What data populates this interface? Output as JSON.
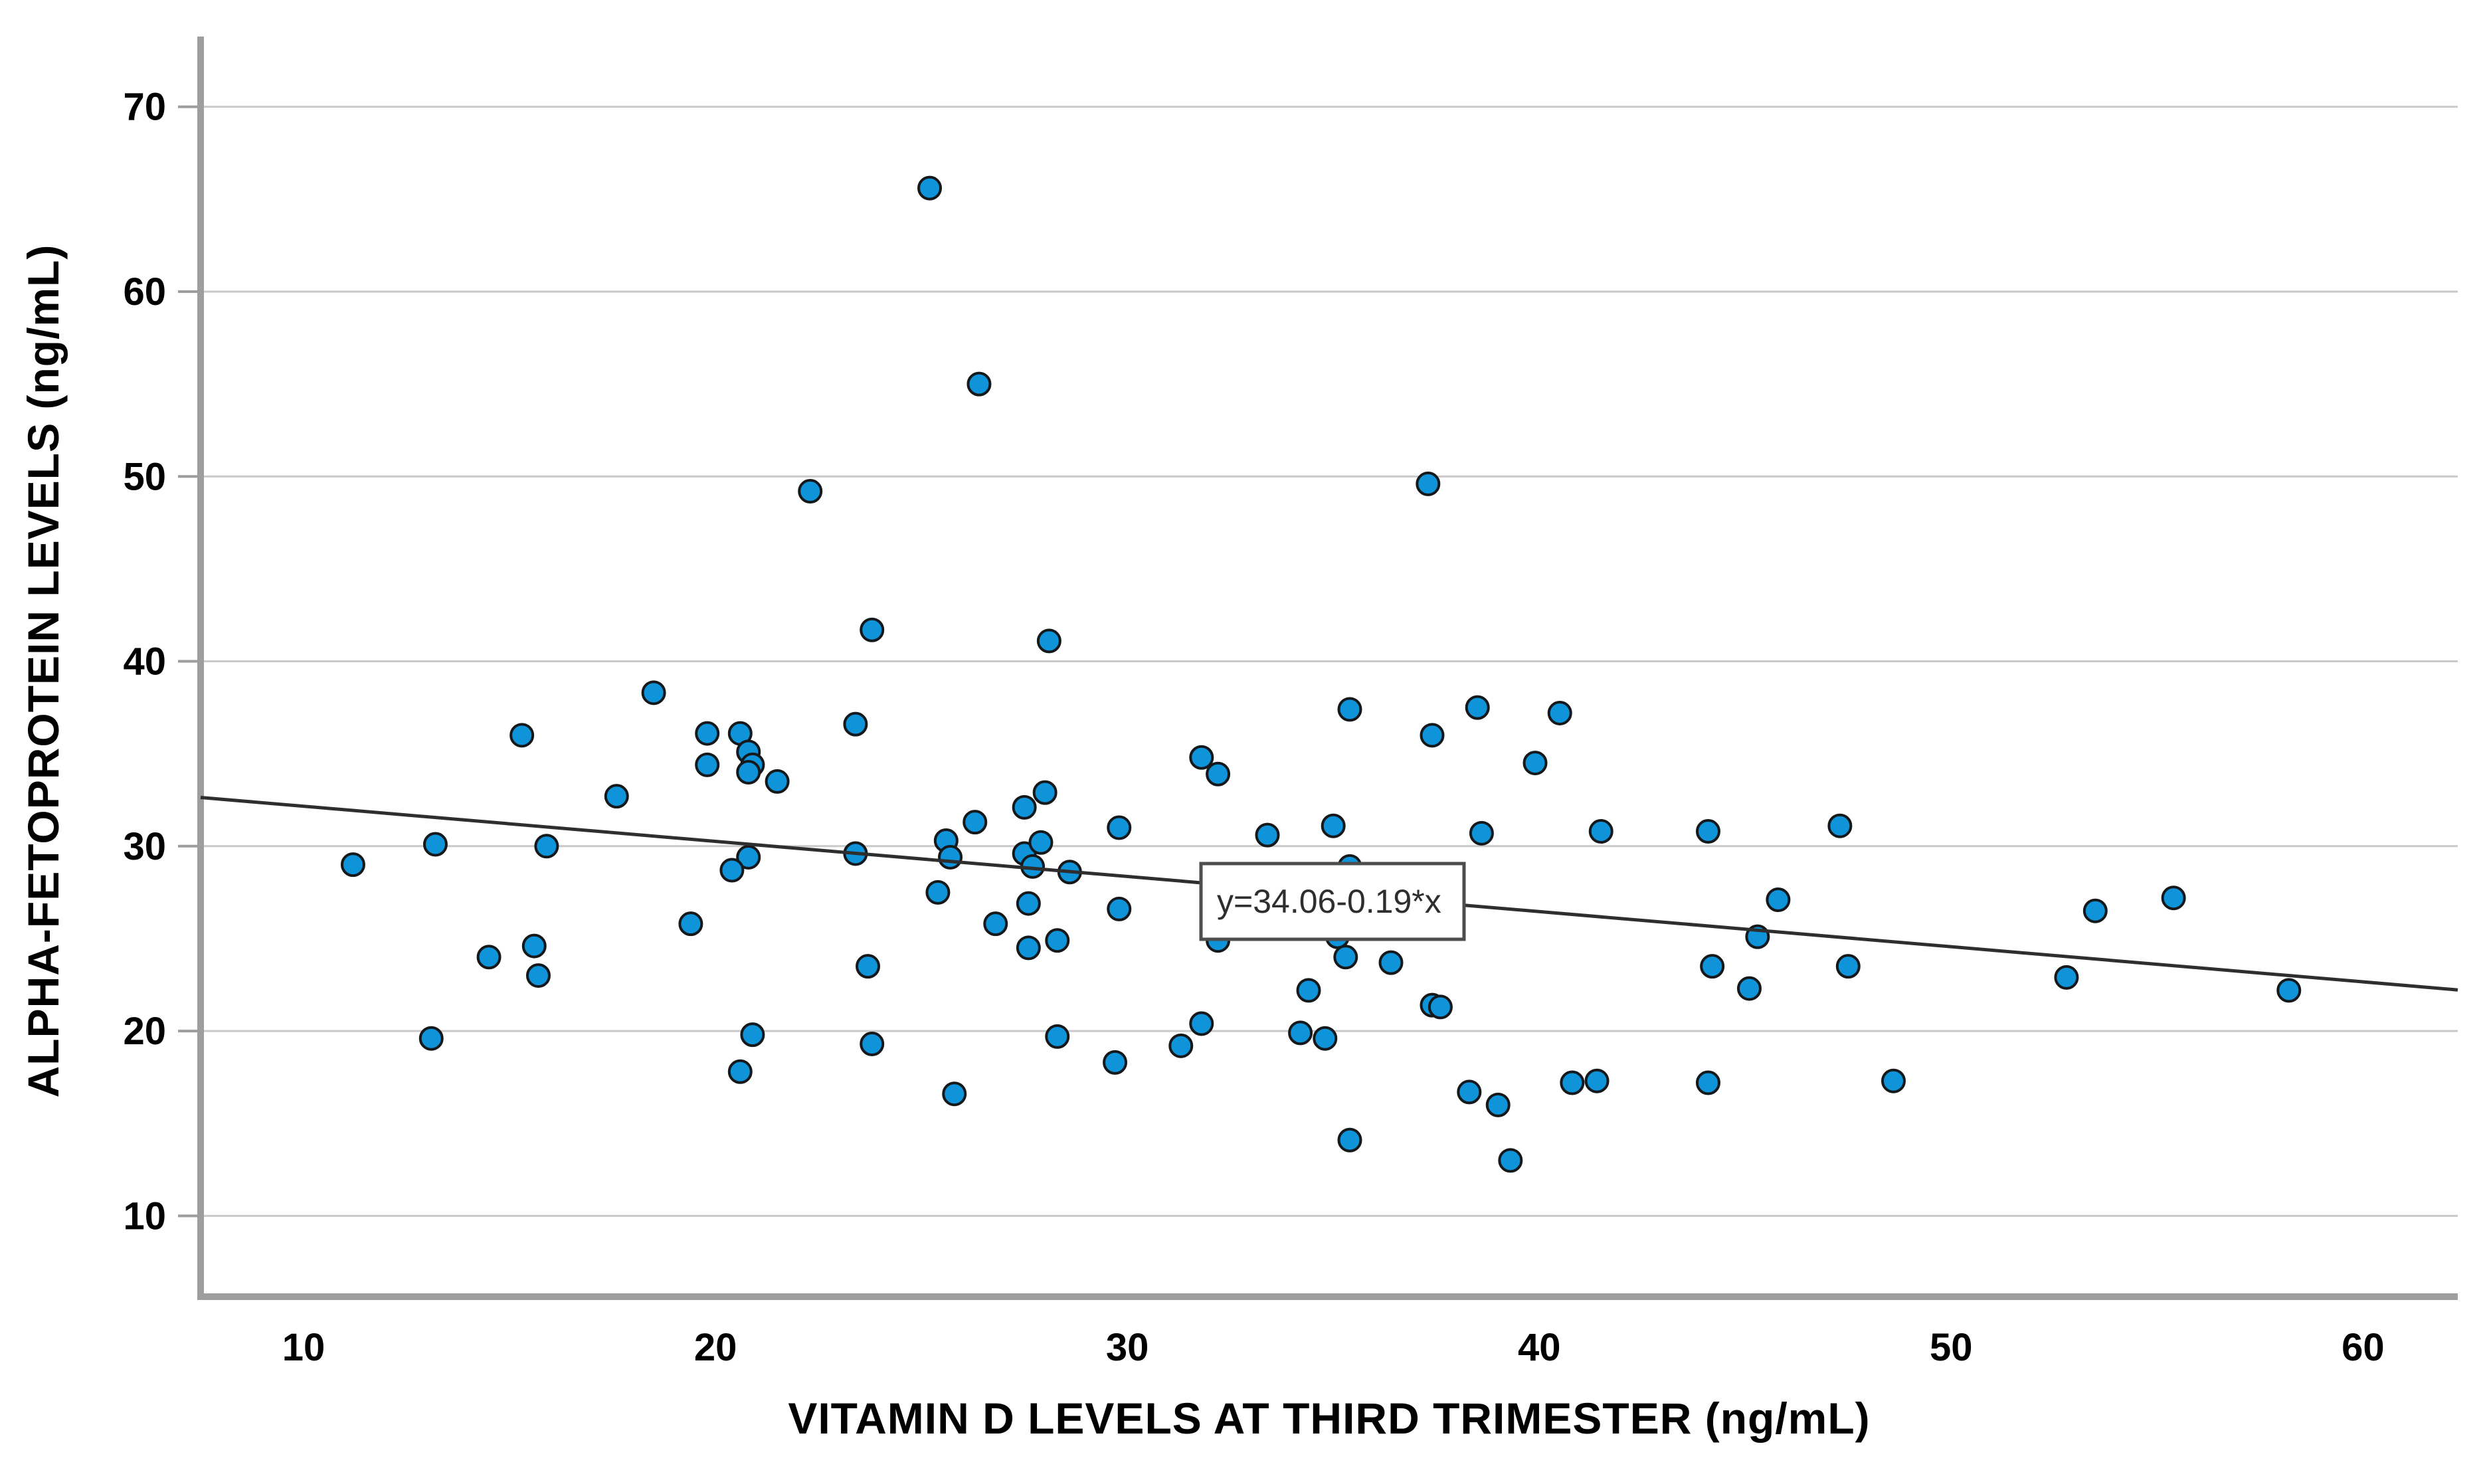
{
  "chart_data": {
    "type": "scatter",
    "title": "",
    "xlabel": "VITAMIN D LEVELS AT THIRD TRIMESTER (ng/mL)",
    "ylabel": "ALPHA-FETOPROTEIN LEVELS (ng/mL)",
    "xlim": [
      7.5,
      62.3
    ],
    "ylim": [
      5.7,
      73.8
    ],
    "x_ticks": [
      10,
      20,
      30,
      40,
      50,
      60
    ],
    "y_ticks": [
      10,
      20,
      30,
      40,
      50,
      60,
      70
    ],
    "grid": "horizontal-only",
    "legend_position": "none",
    "regression": {
      "label": "y=34.06-0.19*x",
      "intercept": 34.06,
      "slope": -0.19,
      "label_anchor_x": 34.7,
      "label_anchor_y": 27.3
    },
    "series": [
      {
        "name": "observations",
        "marker": "circle",
        "points": [
          [
            11.2,
            29.0
          ],
          [
            13.1,
            19.6
          ],
          [
            13.2,
            30.1
          ],
          [
            14.5,
            24.0
          ],
          [
            15.3,
            36.0
          ],
          [
            15.6,
            24.6
          ],
          [
            15.7,
            23.0
          ],
          [
            15.9,
            30.0
          ],
          [
            17.6,
            32.7
          ],
          [
            18.5,
            38.3
          ],
          [
            19.4,
            25.8
          ],
          [
            19.8,
            36.1
          ],
          [
            19.8,
            34.4
          ],
          [
            20.6,
            36.1
          ],
          [
            20.8,
            35.1
          ],
          [
            20.9,
            34.4
          ],
          [
            20.8,
            34.0
          ],
          [
            21.5,
            33.5
          ],
          [
            20.9,
            19.8
          ],
          [
            20.6,
            17.8
          ],
          [
            20.8,
            29.4
          ],
          [
            20.4,
            28.7
          ],
          [
            22.3,
            49.2
          ],
          [
            23.4,
            36.6
          ],
          [
            23.4,
            29.6
          ],
          [
            23.7,
            23.5
          ],
          [
            23.8,
            41.7
          ],
          [
            23.8,
            19.3
          ],
          [
            25.2,
            65.6
          ],
          [
            25.4,
            27.5
          ],
          [
            25.6,
            30.3
          ],
          [
            25.7,
            29.4
          ],
          [
            25.8,
            16.6
          ],
          [
            26.3,
            31.3
          ],
          [
            26.4,
            55.0
          ],
          [
            26.8,
            25.8
          ],
          [
            27.5,
            32.1
          ],
          [
            27.5,
            29.6
          ],
          [
            27.7,
            28.9
          ],
          [
            27.6,
            26.9
          ],
          [
            27.6,
            24.5
          ],
          [
            27.9,
            30.2
          ],
          [
            28.0,
            32.9
          ],
          [
            28.1,
            41.1
          ],
          [
            28.3,
            24.9
          ],
          [
            28.3,
            19.7
          ],
          [
            28.6,
            28.6
          ],
          [
            29.7,
            18.3
          ],
          [
            29.8,
            31.0
          ],
          [
            29.8,
            26.6
          ],
          [
            31.3,
            19.2
          ],
          [
            31.8,
            34.8
          ],
          [
            31.8,
            20.4
          ],
          [
            32.2,
            33.9
          ],
          [
            32.2,
            24.9
          ],
          [
            33.4,
            30.6
          ],
          [
            34.2,
            19.9
          ],
          [
            34.4,
            22.2
          ],
          [
            34.8,
            19.6
          ],
          [
            35.0,
            31.1
          ],
          [
            35.1,
            25.1
          ],
          [
            35.3,
            24.0
          ],
          [
            35.4,
            37.4
          ],
          [
            35.4,
            28.9
          ],
          [
            35.4,
            14.1
          ],
          [
            36.4,
            23.7
          ],
          [
            37.3,
            49.6
          ],
          [
            37.4,
            36.0
          ],
          [
            37.4,
            21.4
          ],
          [
            37.6,
            21.3
          ],
          [
            38.3,
            16.7
          ],
          [
            38.5,
            37.5
          ],
          [
            38.6,
            30.7
          ],
          [
            39.0,
            16.0
          ],
          [
            39.3,
            13.0
          ],
          [
            39.9,
            34.5
          ],
          [
            40.5,
            37.2
          ],
          [
            40.8,
            17.2
          ],
          [
            41.4,
            17.3
          ],
          [
            41.5,
            30.8
          ],
          [
            44.1,
            30.8
          ],
          [
            44.1,
            17.2
          ],
          [
            44.2,
            23.5
          ],
          [
            45.1,
            22.3
          ],
          [
            45.3,
            25.1
          ],
          [
            45.8,
            27.1
          ],
          [
            47.3,
            31.1
          ],
          [
            47.5,
            23.5
          ],
          [
            48.6,
            17.3
          ],
          [
            52.8,
            22.9
          ],
          [
            53.5,
            26.5
          ],
          [
            55.4,
            27.2
          ],
          [
            58.2,
            22.2
          ]
        ]
      }
    ]
  },
  "colors": {
    "background": "#ffffff",
    "marker_fill": "#0f93d9",
    "marker_stroke": "#15191c",
    "gridline": "#c9c9c9",
    "axis_line": "#9e9e9e",
    "regression_line": "#2e2e2e",
    "equation_box_border": "#4d4d4d",
    "equation_box_fill": "#ffffff",
    "text": "#000000"
  }
}
